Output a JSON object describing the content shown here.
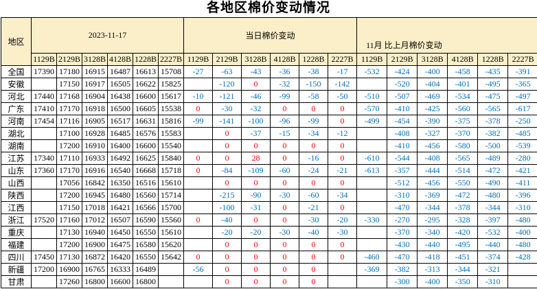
{
  "title": "各地区棉价变动情况",
  "colors": {
    "header_bg": "#FAEFC8",
    "negative_value": "#0070C0",
    "zero_positive_value": "#FF0000",
    "border": "#000000",
    "text": "#000000"
  },
  "table": {
    "region_header": "地区",
    "groups": [
      {
        "label": "2023-11-17",
        "columns": [
          "1129B",
          "2129B",
          "3128B",
          "4128B",
          "1228B",
          "2227B"
        ]
      },
      {
        "label": "当日棉价变动",
        "columns": [
          "1129B",
          "2129B",
          "3128B",
          "4128B",
          "1228B",
          "2227B"
        ]
      },
      {
        "label": "11月 比上月棉价变动",
        "columns": [
          "1129B",
          "2129B",
          "3128B",
          "4128B",
          "1228B",
          "2227B"
        ]
      }
    ],
    "rows": [
      {
        "region": "全国",
        "prices": [
          "17390",
          "17180",
          "16915",
          "16487",
          "16613",
          "15708"
        ],
        "daily": [
          "-27",
          "-63",
          "-43",
          "-36",
          "-38",
          "-17"
        ],
        "monthly": [
          "-532",
          "-424",
          "-400",
          "-458",
          "-435",
          "-391"
        ]
      },
      {
        "region": "安徽",
        "prices": [
          "",
          "17150",
          "16917",
          "16505",
          "16622",
          "15825"
        ],
        "daily": [
          "",
          "-120",
          "0",
          "-32",
          "-150",
          "-142"
        ],
        "monthly": [
          "",
          "-520",
          "-404",
          "-401",
          "-495",
          "-365"
        ]
      },
      {
        "region": "河北",
        "prices": [
          "17440",
          "17168",
          "16904",
          "16438",
          "16600",
          "15617"
        ],
        "daily": [
          "-10",
          "-121",
          "-46",
          "-99",
          "-58",
          "-50"
        ],
        "monthly": [
          "-510",
          "-507",
          "-469",
          "-534",
          "-475",
          "-497"
        ]
      },
      {
        "region": "广东",
        "prices": [
          "17410",
          "17170",
          "16918",
          "16500",
          "16605",
          "15538"
        ],
        "daily": [
          "0",
          "-30",
          "-32",
          "0",
          "0",
          "0"
        ],
        "monthly": [
          "-570",
          "-410",
          "-425",
          "-560",
          "-565",
          "-617"
        ]
      },
      {
        "region": "河南",
        "prices": [
          "17454",
          "17116",
          "16905",
          "16517",
          "16631",
          "15816"
        ],
        "daily": [
          "-99",
          "-141",
          "-100",
          "-96",
          "-99",
          "0"
        ],
        "monthly": [
          "-499",
          "-454",
          "-390",
          "-375",
          "-378",
          "-250"
        ]
      },
      {
        "region": "湖北",
        "prices": [
          "",
          "17100",
          "16928",
          "16485",
          "16576",
          "15583"
        ],
        "daily": [
          "",
          "0",
          "-37",
          "-15",
          "-34",
          "-12"
        ],
        "monthly": [
          "",
          "-408",
          "-327",
          "-370",
          "-382",
          "-485"
        ]
      },
      {
        "region": "湖南",
        "prices": [
          "",
          "17200",
          "16910",
          "16400",
          "16600",
          "15540"
        ],
        "daily": [
          "",
          "0",
          "0",
          "0",
          "0",
          "0"
        ],
        "monthly": [
          "",
          "-410",
          "-456",
          "-580",
          "-500",
          "-539"
        ]
      },
      {
        "region": "江苏",
        "prices": [
          "17340",
          "17110",
          "16933",
          "16492",
          "16625",
          "15840"
        ],
        "daily": [
          "0",
          "0",
          "28",
          "0",
          "-16",
          "0"
        ],
        "monthly": [
          "-610",
          "-544",
          "-408",
          "-565",
          "-489",
          "-280"
        ]
      },
      {
        "region": "山东",
        "prices": [
          "17360",
          "17170",
          "16916",
          "16540",
          "16668",
          "15718"
        ],
        "daily": [
          "0",
          "-84",
          "-109",
          "-60",
          "-24",
          "-21"
        ],
        "monthly": [
          "-613",
          "-357",
          "-444",
          "-514",
          "-472",
          "-421"
        ]
      },
      {
        "region": "山西",
        "prices": [
          "",
          "17056",
          "16842",
          "16350",
          "16516",
          "15610"
        ],
        "daily": [
          "",
          "0",
          "0",
          "0",
          "0",
          "0"
        ],
        "monthly": [
          "",
          "-512",
          "-456",
          "-550",
          "-490",
          "-411"
        ]
      },
      {
        "region": "陕西",
        "prices": [
          "",
          "17200",
          "16945",
          "16480",
          "16560",
          "15714"
        ],
        "daily": [
          "",
          "-215",
          "-90",
          "-30",
          "-60",
          "-34"
        ],
        "monthly": [
          "",
          "-310",
          "-369",
          "-472",
          "-480",
          "-396"
        ]
      },
      {
        "region": "江西",
        "prices": [
          "",
          "17150",
          "17018",
          "16421",
          "16566",
          "15700"
        ],
        "daily": [
          "",
          "-100",
          "-31",
          "0",
          "-21",
          "0"
        ],
        "monthly": [
          "",
          "-470",
          "-344",
          "-378",
          "-344",
          "-310"
        ]
      },
      {
        "region": "浙江",
        "prices": [
          "17520",
          "17160",
          "17012",
          "16507",
          "16590",
          "15560"
        ],
        "daily": [
          "0",
          "-40",
          "0",
          "0",
          "-30",
          "-20"
        ],
        "monthly": [
          "-330",
          "-270",
          "-295",
          "-328",
          "-397",
          "-480"
        ]
      },
      {
        "region": "重庆",
        "prices": [
          "",
          "17130",
          "16940",
          "16450",
          "16550",
          "15610"
        ],
        "daily": [
          "",
          "-20",
          "-20",
          "-30",
          "-40",
          "-30"
        ],
        "monthly": [
          "",
          "-370",
          "-340",
          "-420",
          "-532",
          "-400"
        ]
      },
      {
        "region": "福建",
        "prices": [
          "",
          "17200",
          "16900",
          "16475",
          "16580",
          "15620"
        ],
        "daily": [
          "",
          "0",
          "0",
          "0",
          "0",
          "0"
        ],
        "monthly": [
          "",
          "-430",
          "-440",
          "-495",
          "-440",
          "-480"
        ]
      },
      {
        "region": "四川",
        "prices": [
          "17450",
          "17130",
          "16872",
          "16420",
          "16550",
          "15642"
        ],
        "daily": [
          "0",
          "0",
          "0",
          "0",
          "0",
          "0"
        ],
        "monthly": [
          "-460",
          "-470",
          "-418",
          "-451",
          "-374",
          "-428"
        ]
      },
      {
        "region": "新疆",
        "prices": [
          "17200",
          "16900",
          "16765",
          "16333",
          "16489",
          ""
        ],
        "daily": [
          "-56",
          "0",
          "0",
          "0",
          "0",
          ""
        ],
        "monthly": [
          "-369",
          "-382",
          "-313",
          "-344",
          "-321",
          ""
        ]
      },
      {
        "region": "甘肃",
        "prices": [
          "",
          "17260",
          "16800",
          "16600",
          "16800",
          ""
        ],
        "daily": [
          "",
          "0",
          "0",
          "0",
          "0",
          ""
        ],
        "monthly": [
          "",
          "-300",
          "-400",
          "-350",
          "-310",
          ""
        ]
      }
    ]
  }
}
